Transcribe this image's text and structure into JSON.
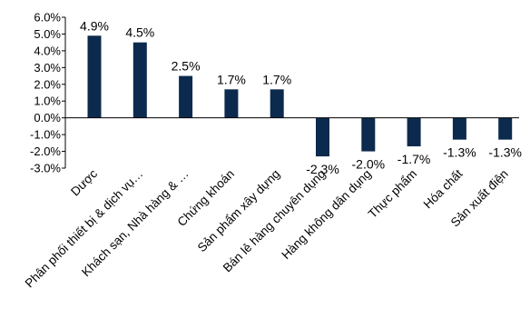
{
  "chart_data": {
    "type": "bar",
    "categories": [
      "Dược",
      "Phân phối thiết bị & dịch vụ…",
      "Khách sạn, Nhà hàng & …",
      "Chứng khoán",
      "Sản phẩm xây dựng",
      "Bán lẻ hàng chuyên dụng",
      "Hàng không dân dụng",
      "Thực phẩm",
      "Hóa chất",
      "Sản xuất điện"
    ],
    "values": [
      4.9,
      4.5,
      2.5,
      1.7,
      1.7,
      -2.3,
      -2.0,
      -1.7,
      -1.3,
      -1.3
    ],
    "value_labels": [
      "4.9%",
      "4.5%",
      "2.5%",
      "1.7%",
      "1.7%",
      "-2.3%",
      "-2.0%",
      "-1.7%",
      "-1.3%",
      "-1.3%"
    ],
    "yticks": [
      6.0,
      5.0,
      4.0,
      3.0,
      2.0,
      1.0,
      0.0,
      -1.0,
      -2.0,
      -3.0
    ],
    "ytick_labels": [
      "6.0%",
      "5.0%",
      "4.0%",
      "3.0%",
      "2.0%",
      "1.0%",
      "0.0%",
      "-1.0%",
      "-2.0%",
      "-3.0%"
    ],
    "ylim": [
      -3.0,
      6.0
    ],
    "grid": false,
    "legend": "none",
    "title": "",
    "xlabel": "",
    "ylabel": "",
    "bar_color": "#0c2a4d"
  }
}
